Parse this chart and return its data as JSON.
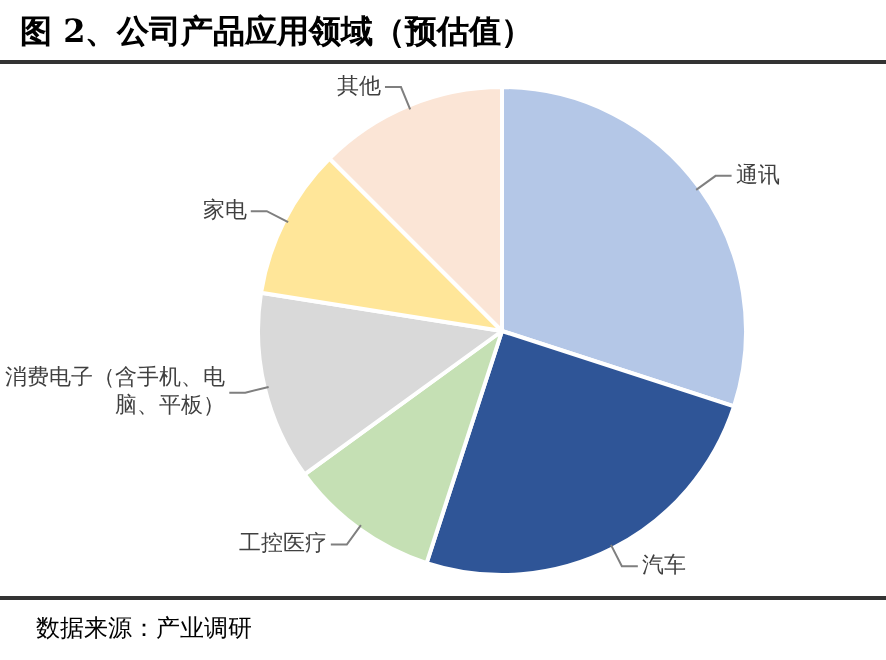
{
  "chart_data": {
    "type": "pie",
    "title": "图 2、公司产品应用领域（预估值）",
    "categories": [
      "通讯",
      "汽车",
      "工控医疗",
      "消费电子（含手机、电脑、平板）",
      "家电",
      "其他"
    ],
    "values": [
      30,
      25,
      10,
      12.5,
      10,
      12.5
    ],
    "colors": [
      "#b4c7e7",
      "#2f5597",
      "#c5e0b4",
      "#d9d9d9",
      "#ffe699",
      "#fbe5d6"
    ],
    "annotations": [
      "数据来源：产业调研"
    ]
  }
}
